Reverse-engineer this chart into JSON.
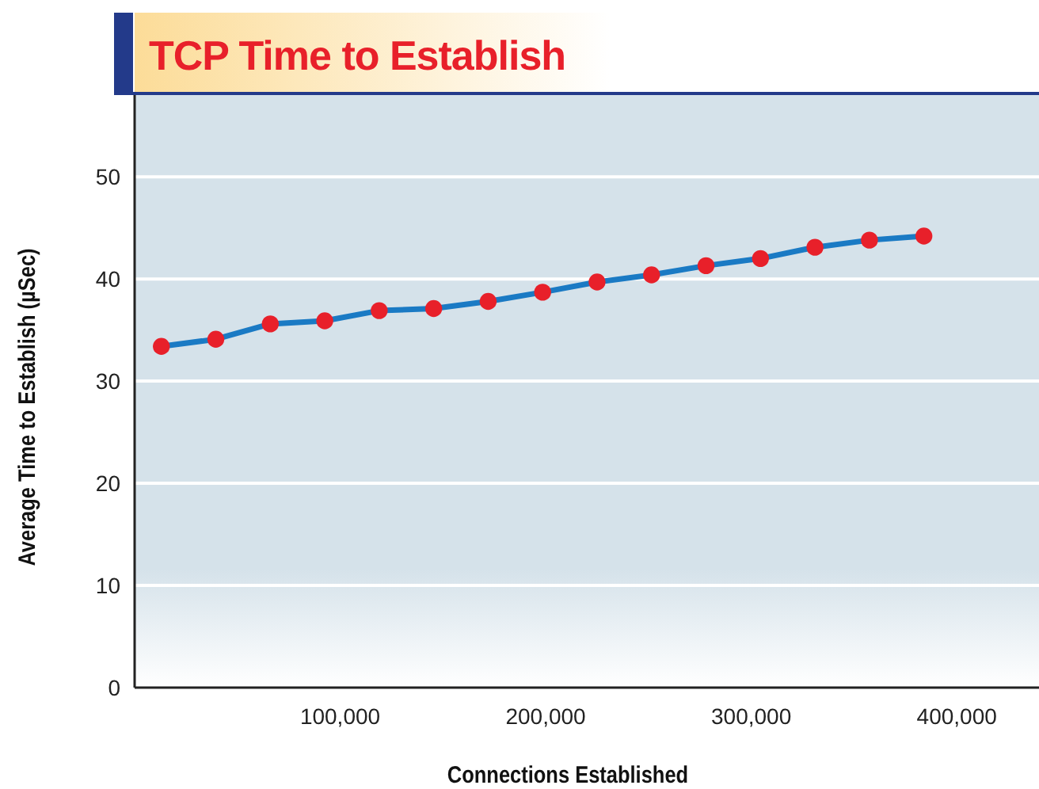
{
  "chart_data": {
    "type": "line",
    "title": "TCP Time to Establish",
    "xlabel": "Connections Established",
    "ylabel": "Average Time to Establish (µSec)",
    "x": [
      13000,
      39500,
      66000,
      92500,
      119000,
      145500,
      172000,
      198500,
      225000,
      251500,
      278000,
      304500,
      331000,
      357500,
      384000
    ],
    "series": [
      {
        "color": "#1a7ac4",
        "values": [
          33.4,
          34.1,
          35.6,
          35.9,
          36.9,
          37.1,
          37.8,
          38.7,
          39.7,
          40.4,
          41.3,
          42.0,
          43.1,
          43.8,
          44.2
        ]
      }
    ],
    "marker": "circle",
    "line_style": "solid",
    "xlim": [
      0,
      440000
    ],
    "xticks": [
      {
        "value": 100000,
        "label": "100,000"
      },
      {
        "value": 200000,
        "label": "200,000"
      },
      {
        "value": 300000,
        "label": "300,000"
      },
      {
        "value": 400000,
        "label": "400,000"
      }
    ],
    "ylim": [
      0,
      58
    ],
    "yticks": [
      0,
      10,
      20,
      30,
      40,
      50
    ],
    "grid": "y"
  }
}
